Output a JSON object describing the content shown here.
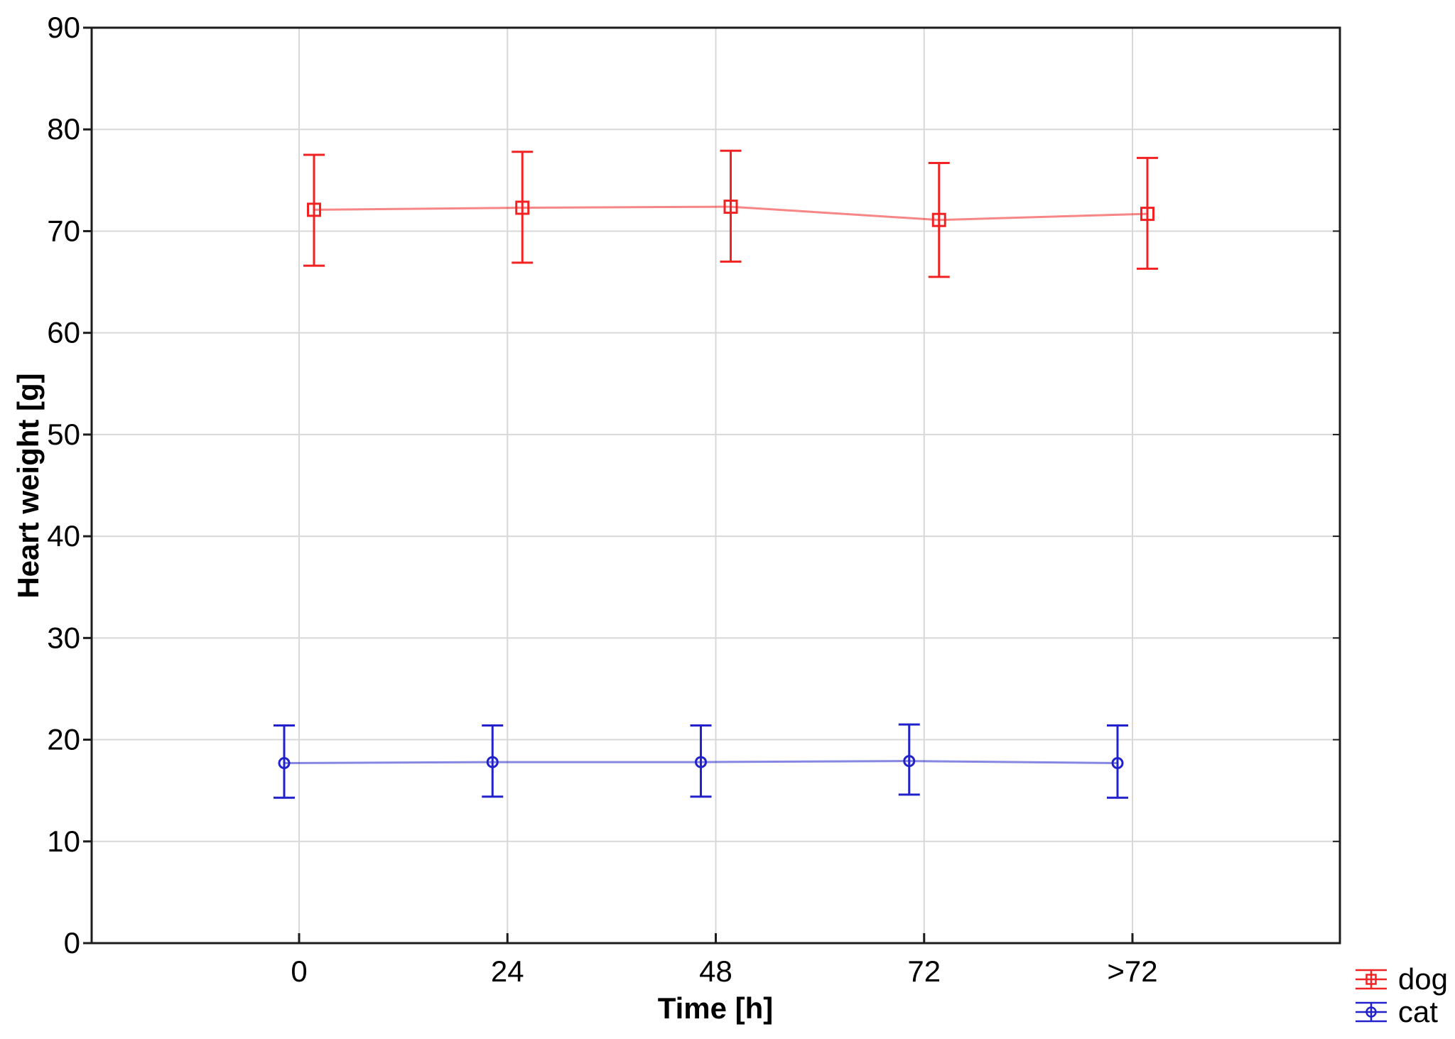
{
  "chart_data": {
    "type": "line",
    "title": "",
    "xlabel": "Time [h]",
    "ylabel": "Heart weight [g]",
    "categories": [
      "0",
      "24",
      "48",
      "72",
      ">72"
    ],
    "ylim": [
      0,
      90
    ],
    "yticks": [
      0,
      10,
      20,
      30,
      40,
      50,
      60,
      70,
      80,
      90
    ],
    "grid": true,
    "legend_position": "bottom-right",
    "marker_style": "open",
    "error_bars": "whiskers-with-caps",
    "colors": {
      "frame": "#1c1c1c",
      "gridline": "#d8d8d8",
      "tick_label": "#000000",
      "background": "#ffffff"
    },
    "series": [
      {
        "name": "dog",
        "color": "#f22222",
        "marker": "square",
        "values": [
          72.1,
          72.3,
          72.4,
          71.1,
          71.7
        ],
        "upper": [
          77.5,
          77.8,
          77.9,
          76.7,
          77.2
        ],
        "lower": [
          66.6,
          66.9,
          67.0,
          65.5,
          66.3
        ]
      },
      {
        "name": "cat",
        "color": "#2222cc",
        "marker": "circle",
        "values": [
          17.7,
          17.8,
          17.8,
          17.9,
          17.7
        ],
        "upper": [
          21.4,
          21.4,
          21.4,
          21.5,
          21.4
        ],
        "lower": [
          14.3,
          14.4,
          14.4,
          14.6,
          14.3
        ]
      }
    ]
  }
}
